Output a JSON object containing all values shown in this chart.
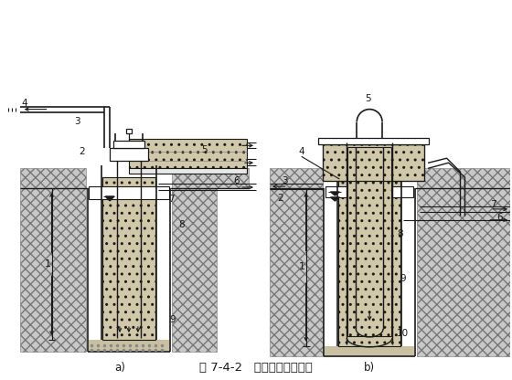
{
  "title": "图 7-4-2   吸泥机清孔示意图",
  "label_a": "a)",
  "label_b": "b)",
  "bg_color": "#ffffff",
  "lc": "#1a1a1a",
  "soil_fc": "#c8c8c8",
  "soil_ec": "#777777",
  "concrete_fc": "#d0c8a8",
  "font_title": 9.5,
  "font_label": 8.5,
  "font_num": 7.5
}
